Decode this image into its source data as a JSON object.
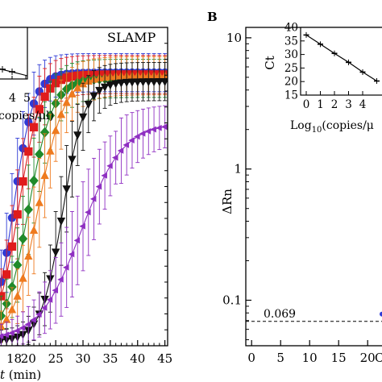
{
  "chart_data": [
    {
      "panel": "A",
      "type": "line",
      "annotation": "SLAMP",
      "xlabel_var": "t",
      "xlabel_unit": " (min)",
      "xlim": [
        14.5,
        45.5
      ],
      "xticks": [
        20,
        25,
        30,
        35,
        40,
        45
      ],
      "xtick_labels": [
        "20",
        "25",
        "30",
        "35",
        "40",
        "45"
      ],
      "x_left_partial_label": "18",
      "ylim": [
        0,
        1
      ],
      "series": [
        {
          "color": "#2f3bd6",
          "marker": "circle",
          "midpoint": 17.3,
          "steep": 0.55,
          "plateau": 0.858
        },
        {
          "color": "#e01c1c",
          "marker": "square",
          "midpoint": 18.2,
          "steep": 0.5,
          "plateau": 0.852
        },
        {
          "color": "#1f8a2a",
          "marker": "diamond",
          "midpoint": 20.0,
          "steep": 0.45,
          "plateau": 0.84
        },
        {
          "color": "#ee7a1f",
          "marker": "triangle-up",
          "midpoint": 21.8,
          "steep": 0.42,
          "plateau": 0.848
        },
        {
          "color": "#111111",
          "marker": "triangle-down",
          "midpoint": 26.3,
          "steep": 0.5,
          "plateau": 0.83
        },
        {
          "color": "#8f2fc2",
          "marker": "triangle-left",
          "midpoint": 29.6,
          "steep": 0.26,
          "plateau": 0.7
        }
      ],
      "inset": {
        "xtick_labels": [
          "4",
          "5"
        ],
        "xlabel": "copies/μl)"
      }
    },
    {
      "panel": "B",
      "type": "line",
      "panel_label": "B",
      "ylabel": "ΔRn",
      "yscale": "log",
      "ylim": [
        0.045,
        12
      ],
      "yticks": [
        0.1,
        1,
        10
      ],
      "ytick_labels": [
        "0.1",
        "1",
        "10"
      ],
      "xlim": [
        -1,
        24
      ],
      "xticks": [
        0,
        5,
        10,
        15,
        20
      ],
      "xtick_labels": [
        "0",
        "5",
        "10",
        "15",
        "20"
      ],
      "threshold": {
        "value": 0.069,
        "label": "0.069"
      },
      "x_right_partial_label": "C",
      "inset": {
        "ylabel": "Ct",
        "xlabel_prefix": "Log",
        "xlabel_sub": "10",
        "xlabel_suffix": "(copies/μ",
        "xlim": [
          -0.4,
          5.6
        ],
        "ylim": [
          15,
          40
        ],
        "xticks": [
          0,
          1,
          2,
          3,
          4
        ],
        "xtick_labels": [
          "0",
          "1",
          "2",
          "3",
          "4"
        ],
        "yticks": [
          15,
          20,
          25,
          30,
          35,
          40
        ],
        "ytick_labels": [
          "15",
          "20",
          "25",
          "30",
          "35",
          "40"
        ],
        "points": [
          {
            "x": 0,
            "y": 37.2
          },
          {
            "x": 1,
            "y": 33.8
          },
          {
            "x": 2,
            "y": 30.4
          },
          {
            "x": 3,
            "y": 27.1
          },
          {
            "x": 4,
            "y": 23.5
          },
          {
            "x": 5,
            "y": 20.2
          }
        ]
      }
    }
  ]
}
